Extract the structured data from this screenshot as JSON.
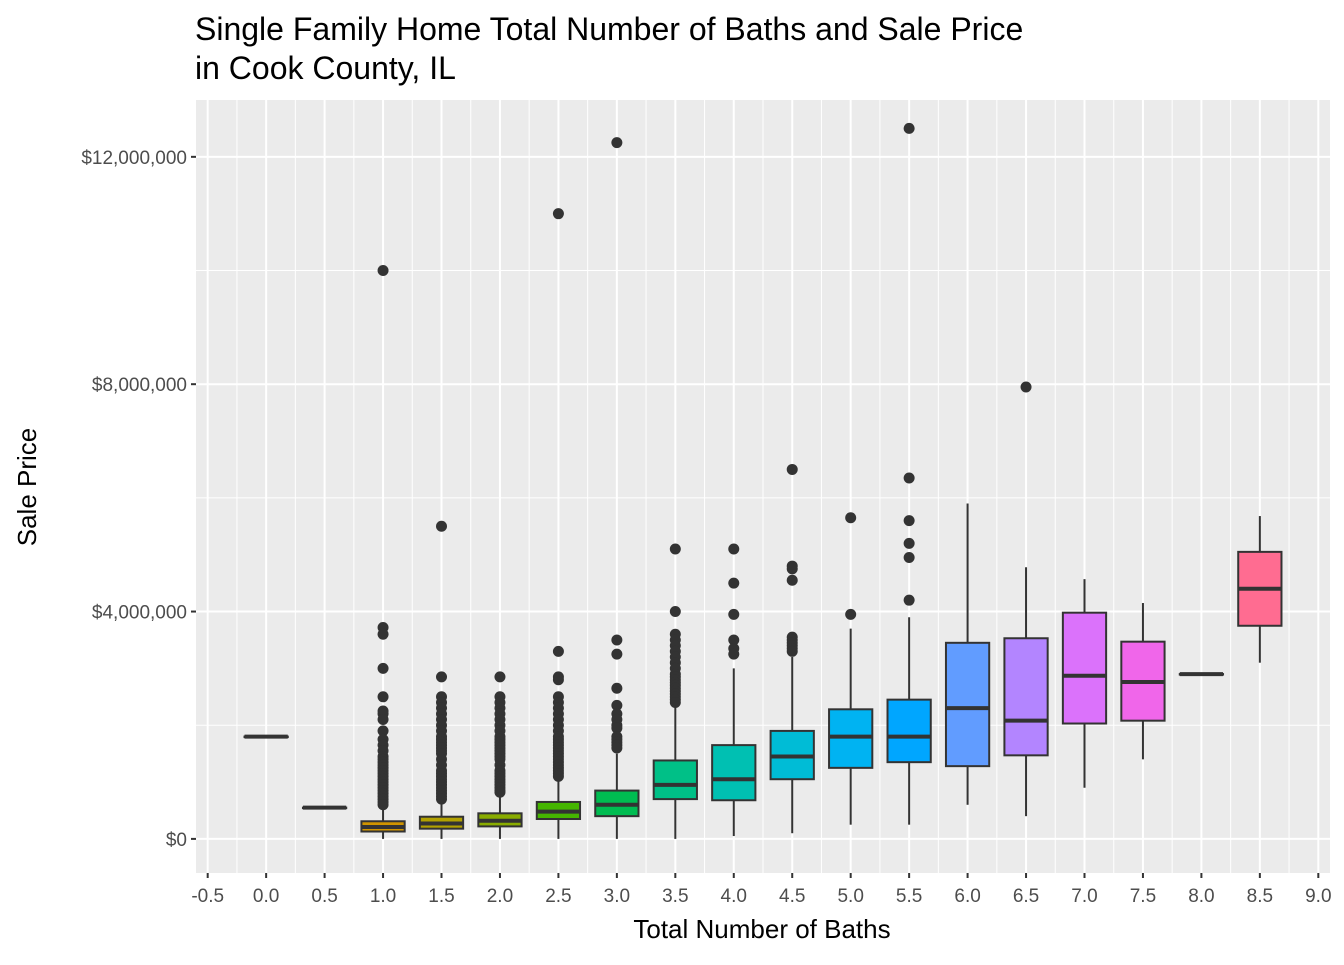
{
  "chart_data": {
    "type": "boxplot",
    "title_line1": "Single Family Home Total Number of Baths and Sale Price",
    "title_line2": "in Cook County, IL",
    "xlabel": "Total Number of Baths",
    "ylabel": "Sale Price",
    "xlim": [
      -0.6,
      9.1
    ],
    "ylim": [
      -600000,
      13000000
    ],
    "x_ticks": [
      -0.5,
      0.0,
      0.5,
      1.0,
      1.5,
      2.0,
      2.5,
      3.0,
      3.5,
      4.0,
      4.5,
      5.0,
      5.5,
      6.0,
      6.5,
      7.0,
      7.5,
      8.0,
      8.5,
      9.0
    ],
    "x_tick_labels": [
      "-0.5",
      "0.0",
      "0.5",
      "1.0",
      "1.5",
      "2.0",
      "2.5",
      "3.0",
      "3.5",
      "4.0",
      "4.5",
      "5.0",
      "5.5",
      "6.0",
      "6.5",
      "7.0",
      "7.5",
      "8.0",
      "8.5",
      "9.0"
    ],
    "y_ticks": [
      0,
      4000000,
      8000000,
      12000000
    ],
    "y_tick_labels": [
      "$0",
      "$4,000,000",
      "$8,000,000",
      "$12,000,000"
    ],
    "y_minor_ticks": [
      2000000,
      6000000,
      10000000
    ],
    "grid": true,
    "background": "#EBEBEB",
    "box_width": 0.37,
    "boxes": [
      {
        "x": 0.0,
        "min": 1800000,
        "q1": 1800000,
        "median": 1800000,
        "q3": 1800000,
        "max": 1800000,
        "color": "#F8766D",
        "outliers": []
      },
      {
        "x": 0.5,
        "min": 550000,
        "q1": 550000,
        "median": 550000,
        "q3": 550000,
        "max": 550000,
        "color": "#E7851E",
        "outliers": []
      },
      {
        "x": 1.0,
        "min": 0,
        "q1": 130000,
        "median": 210000,
        "q3": 310000,
        "max": 560000,
        "color": "#D09400",
        "outliers": [
          10000000,
          3720000,
          3600000,
          3000000,
          2500000,
          2250000,
          2200000,
          2100000,
          1900000,
          1750000,
          1650000,
          1550000,
          1450000,
          1400000,
          1350000,
          1300000,
          1250000,
          1200000,
          1150000,
          1100000,
          1050000,
          1000000,
          950000,
          900000,
          850000,
          800000,
          750000,
          700000,
          650000,
          600000
        ]
      },
      {
        "x": 1.5,
        "min": 0,
        "q1": 180000,
        "median": 270000,
        "q3": 390000,
        "max": 650000,
        "color": "#B2A100",
        "outliers": [
          5500000,
          2850000,
          2500000,
          2400000,
          2300000,
          2200000,
          2100000,
          2000000,
          1900000,
          1800000,
          1750000,
          1700000,
          1650000,
          1600000,
          1550000,
          1500000,
          1400000,
          1300000,
          1200000,
          1150000,
          1100000,
          1050000,
          1000000,
          950000,
          900000,
          850000,
          800000,
          750000,
          700000
        ]
      },
      {
        "x": 2.0,
        "min": 0,
        "q1": 220000,
        "median": 320000,
        "q3": 450000,
        "max": 780000,
        "color": "#89AC00",
        "outliers": [
          2850000,
          2500000,
          2400000,
          2300000,
          2200000,
          2100000,
          2000000,
          1900000,
          1800000,
          1750000,
          1700000,
          1650000,
          1600000,
          1550000,
          1500000,
          1450000,
          1400000,
          1300000,
          1200000,
          1150000,
          1100000,
          1050000,
          1000000,
          950000,
          900000,
          850000,
          820000
        ]
      },
      {
        "x": 2.5,
        "min": 0,
        "q1": 350000,
        "median": 480000,
        "q3": 650000,
        "max": 1050000,
        "color": "#45B500",
        "outliers": [
          11000000,
          3300000,
          2850000,
          2800000,
          2500000,
          2400000,
          2300000,
          2200000,
          2100000,
          2000000,
          1900000,
          1800000,
          1750000,
          1700000,
          1650000,
          1600000,
          1550000,
          1500000,
          1450000,
          1400000,
          1350000,
          1300000,
          1250000,
          1200000,
          1150000,
          1100000
        ]
      },
      {
        "x": 3.0,
        "min": 0,
        "q1": 400000,
        "median": 600000,
        "q3": 850000,
        "max": 1500000,
        "color": "#00BC51",
        "outliers": [
          12250000,
          3500000,
          3250000,
          2650000,
          2350000,
          2200000,
          2100000,
          2000000,
          1950000,
          1800000,
          1750000,
          1700000,
          1650000,
          1600000
        ]
      },
      {
        "x": 3.5,
        "min": 0,
        "q1": 700000,
        "median": 950000,
        "q3": 1380000,
        "max": 2350000,
        "color": "#00C087",
        "outliers": [
          5100000,
          4000000,
          3600000,
          3500000,
          3400000,
          3300000,
          3200000,
          3100000,
          3000000,
          2900000,
          2850000,
          2800000,
          2750000,
          2700000,
          2650000,
          2600000,
          2550000,
          2500000,
          2450000,
          2400000
        ]
      },
      {
        "x": 4.0,
        "min": 50000,
        "q1": 680000,
        "median": 1050000,
        "q3": 1650000,
        "max": 3000000,
        "color": "#00C0B2",
        "outliers": [
          5100000,
          4500000,
          3950000,
          3500000,
          3350000,
          3250000
        ]
      },
      {
        "x": 4.5,
        "min": 100000,
        "q1": 1050000,
        "median": 1450000,
        "q3": 1900000,
        "max": 3200000,
        "color": "#00BCD6",
        "outliers": [
          6500000,
          4800000,
          4750000,
          4550000,
          3550000,
          3500000,
          3450000,
          3400000,
          3350000,
          3300000
        ]
      },
      {
        "x": 5.0,
        "min": 250000,
        "q1": 1250000,
        "median": 1800000,
        "q3": 2280000,
        "max": 3700000,
        "color": "#00B3F2",
        "outliers": [
          5650000,
          3950000
        ]
      },
      {
        "x": 5.5,
        "min": 250000,
        "q1": 1350000,
        "median": 1800000,
        "q3": 2450000,
        "max": 3900000,
        "color": "#00A6FF",
        "outliers": [
          12500000,
          6350000,
          5600000,
          5200000,
          4950000,
          4200000
        ]
      },
      {
        "x": 6.0,
        "min": 600000,
        "q1": 1280000,
        "median": 2300000,
        "q3": 3450000,
        "max": 5900000,
        "color": "#619CFF",
        "outliers": []
      },
      {
        "x": 6.5,
        "min": 400000,
        "q1": 1470000,
        "median": 2080000,
        "q3": 3530000,
        "max": 4780000,
        "color": "#B385FF",
        "outliers": [
          7950000
        ]
      },
      {
        "x": 7.0,
        "min": 900000,
        "q1": 2030000,
        "median": 2870000,
        "q3": 3980000,
        "max": 4570000,
        "color": "#DB72FB",
        "outliers": []
      },
      {
        "x": 7.5,
        "min": 1400000,
        "q1": 2080000,
        "median": 2760000,
        "q3": 3470000,
        "max": 4150000,
        "color": "#F066EA",
        "outliers": []
      },
      {
        "x": 8.0,
        "min": 2900000,
        "q1": 2900000,
        "median": 2900000,
        "q3": 2900000,
        "max": 2900000,
        "color": "#FB61C4",
        "outliers": []
      },
      {
        "x": 8.5,
        "min": 3100000,
        "q1": 3750000,
        "median": 4400000,
        "q3": 5050000,
        "max": 5680000,
        "color": "#FF6C91",
        "outliers": []
      }
    ]
  }
}
